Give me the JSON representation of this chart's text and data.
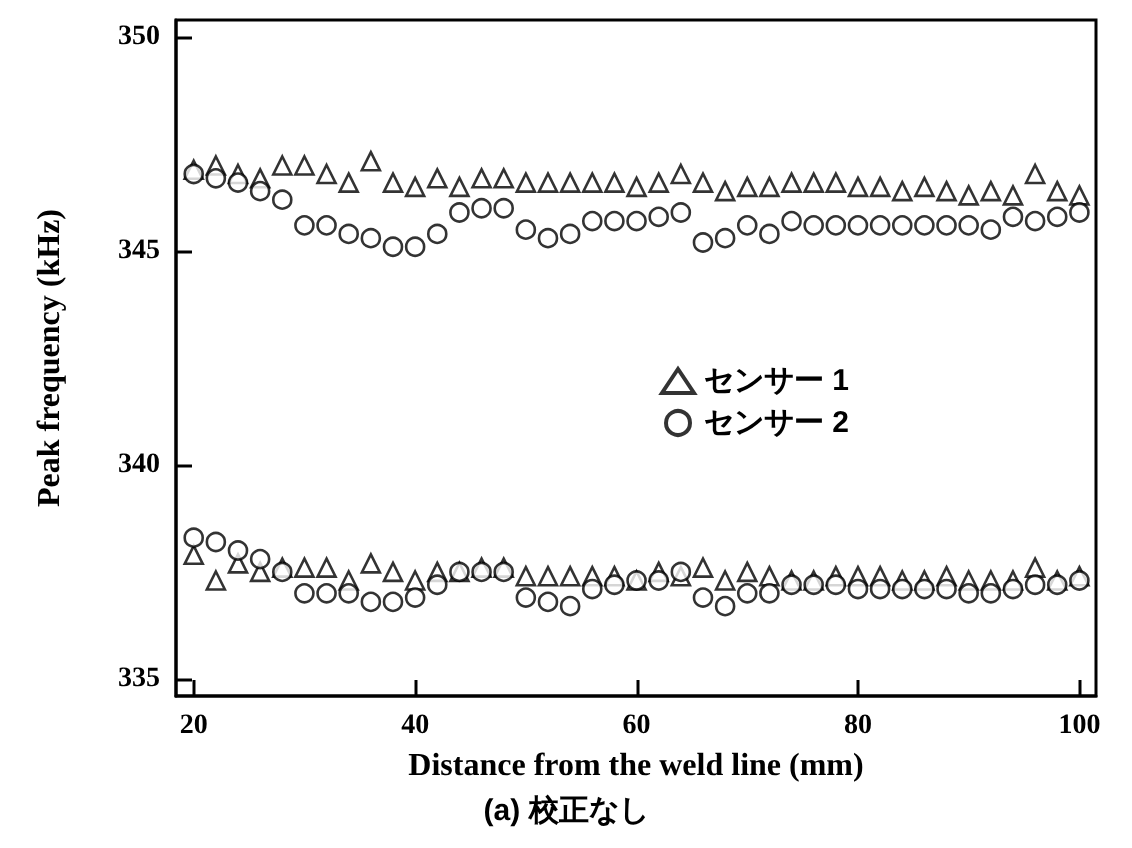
{
  "chart_data": {
    "type": "scatter",
    "xlabel": "Distance from the weld line (mm)",
    "ylabel": "Peak frequency (kHz)",
    "annotations": [
      "(a) 校正なし"
    ],
    "xlim": [
      18.4,
      101.5
    ],
    "xticks": [
      20,
      40,
      60,
      80,
      100
    ],
    "ylim": [
      334.6,
      350.4
    ],
    "yticks": [
      335,
      340,
      345,
      350
    ],
    "grid": false,
    "legend": "right",
    "series": [
      {
        "name": "センサー 1",
        "color": "#000000",
        "marker": "triangle",
        "x": [
          20,
          22,
          24,
          26,
          28,
          30,
          32,
          34,
          36,
          38,
          40,
          42,
          44,
          46,
          48,
          50,
          52,
          54,
          56,
          58,
          60,
          62,
          64,
          66,
          68,
          70,
          72,
          74,
          76,
          78,
          80,
          82,
          84,
          86,
          88,
          90,
          92,
          94,
          96,
          98,
          100,
          20,
          22,
          24,
          26,
          28,
          30,
          32,
          34,
          36,
          38,
          40,
          42,
          44,
          46,
          48,
          50,
          52,
          54,
          56,
          58,
          60,
          62,
          64,
          66,
          68,
          70,
          72,
          74,
          76,
          78,
          80,
          82,
          84,
          86,
          88,
          90,
          92,
          94,
          96,
          98,
          100
        ],
        "values": [
          346.9,
          347.0,
          346.8,
          346.7,
          347.0,
          347.0,
          346.8,
          346.6,
          347.1,
          346.6,
          346.5,
          346.7,
          346.5,
          346.7,
          346.7,
          346.6,
          346.6,
          346.6,
          346.6,
          346.6,
          346.5,
          346.6,
          346.8,
          346.6,
          346.4,
          346.5,
          346.5,
          346.6,
          346.6,
          346.6,
          346.5,
          346.5,
          346.4,
          346.5,
          346.4,
          346.3,
          346.4,
          346.3,
          346.8,
          346.4,
          346.3,
          337.9,
          337.3,
          337.7,
          337.5,
          337.6,
          337.6,
          337.6,
          337.3,
          337.7,
          337.5,
          337.3,
          337.5,
          337.5,
          337.6,
          337.6,
          337.4,
          337.4,
          337.4,
          337.4,
          337.4,
          337.3,
          337.5,
          337.4,
          337.6,
          337.3,
          337.5,
          337.4,
          337.3,
          337.3,
          337.4,
          337.4,
          337.4,
          337.3,
          337.3,
          337.4,
          337.3,
          337.3,
          337.3,
          337.6,
          337.3,
          337.4
        ]
      },
      {
        "name": "センサー 2",
        "color": "#000000",
        "marker": "circle",
        "x": [
          20,
          22,
          24,
          26,
          28,
          30,
          32,
          34,
          36,
          38,
          40,
          42,
          44,
          46,
          48,
          50,
          52,
          54,
          56,
          58,
          60,
          62,
          64,
          66,
          68,
          70,
          72,
          74,
          76,
          78,
          80,
          82,
          84,
          86,
          88,
          90,
          92,
          94,
          96,
          98,
          100,
          20,
          22,
          24,
          26,
          28,
          30,
          32,
          34,
          36,
          38,
          40,
          42,
          44,
          46,
          48,
          50,
          52,
          54,
          56,
          58,
          60,
          62,
          64,
          66,
          68,
          70,
          72,
          74,
          76,
          78,
          80,
          82,
          84,
          86,
          88,
          90,
          92,
          94,
          96,
          98,
          100
        ],
        "values": [
          346.8,
          346.7,
          346.6,
          346.4,
          346.2,
          345.6,
          345.6,
          345.4,
          345.3,
          345.1,
          345.1,
          345.4,
          345.9,
          346.0,
          346.0,
          345.5,
          345.3,
          345.4,
          345.7,
          345.7,
          345.7,
          345.8,
          345.9,
          345.2,
          345.3,
          345.6,
          345.4,
          345.7,
          345.6,
          345.6,
          345.6,
          345.6,
          345.6,
          345.6,
          345.6,
          345.6,
          345.5,
          345.8,
          345.7,
          345.8,
          345.9,
          338.3,
          338.2,
          338.0,
          337.8,
          337.5,
          337.0,
          337.0,
          337.0,
          336.8,
          336.8,
          336.9,
          337.2,
          337.5,
          337.5,
          337.5,
          336.9,
          336.8,
          336.7,
          337.1,
          337.2,
          337.3,
          337.3,
          337.5,
          336.9,
          336.7,
          337.0,
          337.0,
          337.2,
          337.2,
          337.2,
          337.1,
          337.1,
          337.1,
          337.1,
          337.1,
          337.0,
          337.0,
          337.1,
          337.2,
          337.2,
          337.3
        ]
      }
    ]
  }
}
